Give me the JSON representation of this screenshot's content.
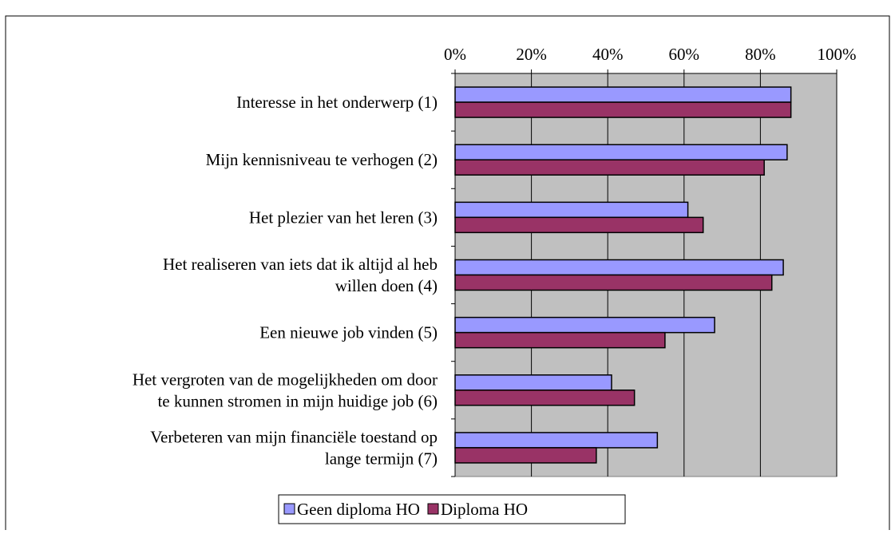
{
  "chart_data": {
    "type": "bar",
    "orientation": "horizontal",
    "categories": [
      [
        "Interesse in het onderwerp (1)"
      ],
      [
        "Mijn kennisniveau te verhogen (2)"
      ],
      [
        "Het plezier van het leren (3)"
      ],
      [
        "Het realiseren van iets dat ik altijd al heb",
        "willen doen (4)"
      ],
      [
        "Een nieuwe job vinden (5)"
      ],
      [
        "Het vergroten van de mogelijkheden om door",
        "te kunnen stromen in mijn huidige job (6)"
      ],
      [
        "Verbeteren van mijn financiële toestand op",
        "lange termijn (7)"
      ]
    ],
    "series": [
      {
        "name": "Geen diploma HO",
        "color": "#9999ff",
        "values": [
          88,
          87,
          61,
          86,
          68,
          41,
          53
        ]
      },
      {
        "name": "Diploma HO",
        "color": "#993366",
        "values": [
          88,
          81,
          65,
          83,
          55,
          47,
          37
        ]
      }
    ],
    "xlim": [
      0,
      100
    ],
    "xticks": [
      {
        "value": 0,
        "label": "0%"
      },
      {
        "value": 20,
        "label": "20%"
      },
      {
        "value": 40,
        "label": "40%"
      },
      {
        "value": 60,
        "label": "60%"
      },
      {
        "value": 80,
        "label": "80%"
      },
      {
        "value": 100,
        "label": "100%"
      }
    ],
    "grid": true,
    "legend": "bottom"
  }
}
